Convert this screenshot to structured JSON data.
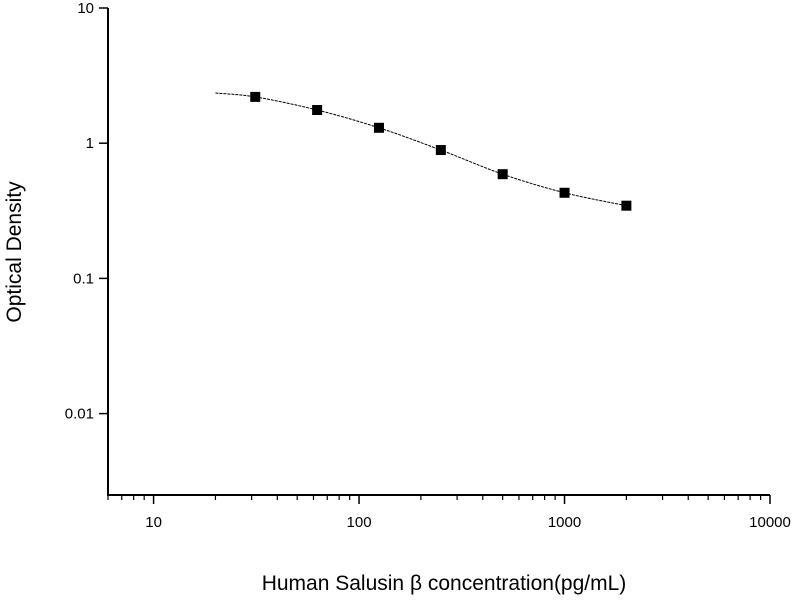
{
  "chart_data": {
    "type": "scatter",
    "title": "",
    "xlabel": "Human Salusin β  concentration(pg/mL)",
    "ylabel": "Optical Density",
    "x_scale": "log",
    "y_scale": "log",
    "xlim": [
      6,
      10000
    ],
    "ylim": [
      0.0025,
      10
    ],
    "x_ticks": [
      10,
      100,
      1000,
      10000
    ],
    "x_tick_labels": [
      "10",
      "100",
      "1000",
      "10000"
    ],
    "y_ticks": [
      0.01,
      0.1,
      1,
      10
    ],
    "y_tick_labels": [
      "0.01",
      "0.1",
      "1",
      "10"
    ],
    "grid": false,
    "series": [
      {
        "marker": "square",
        "color": "#000000",
        "x": [
          31.25,
          62.5,
          125,
          250,
          500,
          1000,
          2000
        ],
        "y": [
          2.2,
          1.76,
          1.3,
          0.89,
          0.59,
          0.43,
          0.345
        ]
      }
    ],
    "fit_curve": {
      "color": "#000000",
      "x_range": [
        20,
        2000
      ],
      "start_y": 2.35
    }
  }
}
